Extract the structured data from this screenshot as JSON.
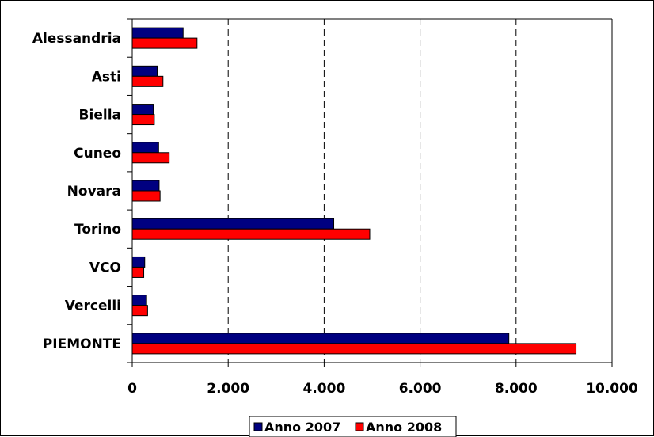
{
  "chart_data": {
    "type": "bar",
    "orientation": "horizontal",
    "categories": [
      "Alessandria",
      "Asti",
      "Biella",
      "Cuneo",
      "Novara",
      "Torino",
      "VCO",
      "Vercelli",
      "PIEMONTE"
    ],
    "series": [
      {
        "name": "Anno 2007",
        "color": "#000080",
        "values": [
          1060,
          520,
          440,
          550,
          560,
          4200,
          260,
          300,
          7850
        ]
      },
      {
        "name": "Anno 2008",
        "color": "#ff0000",
        "values": [
          1350,
          640,
          460,
          770,
          580,
          4950,
          240,
          320,
          9250
        ]
      }
    ],
    "xlim": [
      0,
      10000
    ],
    "xticks": [
      0,
      2000,
      4000,
      6000,
      8000,
      10000
    ],
    "xtick_labels": [
      "0",
      "2.000",
      "4.000",
      "6.000",
      "8.000",
      "10.000"
    ],
    "grid": "vertical dashed",
    "legend_position": "bottom"
  }
}
